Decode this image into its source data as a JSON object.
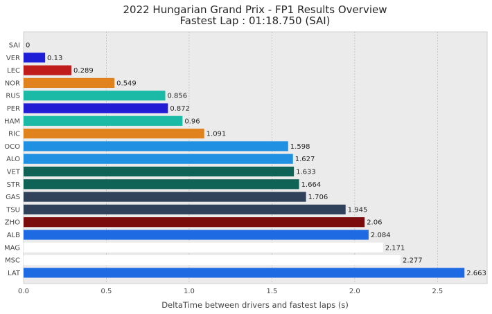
{
  "chart_data": {
    "type": "bar",
    "orientation": "horizontal",
    "title": "2022 Hungarian Grand Prix - FP1 Results Overview",
    "subtitle": "Fastest Lap : 01:18.750 (SAI)",
    "xlabel": "DeltaTime between drivers and fastest laps (s)",
    "ylabel": "",
    "xlim": [
      0,
      2.8
    ],
    "xticks": [
      0,
      0.5,
      1,
      1.5,
      2,
      2.5
    ],
    "xtick_labels": [
      "0.0",
      "0.5",
      "1.0",
      "1.5",
      "2.0",
      "2.5"
    ],
    "grid": true,
    "categories": [
      "SAI",
      "VER",
      "LEC",
      "NOR",
      "RUS",
      "PER",
      "HAM",
      "RIC",
      "OCO",
      "ALO",
      "VET",
      "STR",
      "GAS",
      "TSU",
      "ZHO",
      "ALB",
      "MAG",
      "MSC",
      "LAT"
    ],
    "values": [
      0,
      0.13,
      0.289,
      0.549,
      0.856,
      0.872,
      0.96,
      1.091,
      1.598,
      1.627,
      1.633,
      1.664,
      1.706,
      1.945,
      2.06,
      2.084,
      2.171,
      2.277,
      2.663
    ],
    "value_labels": [
      "0",
      "0.13",
      "0.289",
      "0.549",
      "0.856",
      "0.872",
      "0.96",
      "1.091",
      "1.598",
      "1.627",
      "1.633",
      "1.664",
      "1.706",
      "1.945",
      "2.06",
      "2.084",
      "2.171",
      "2.277",
      "2.663"
    ],
    "colors": [
      "#ED1C24",
      "#1E1ED7",
      "#C01C1C",
      "#E0831E",
      "#1ABAA6",
      "#221CD4",
      "#1ABAA6",
      "#E0831E",
      "#2090E2",
      "#2090E2",
      "#0F6356",
      "#0F6356",
      "#30415A",
      "#30415A",
      "#7B0C0C",
      "#1E6AE3",
      "#FFFFFF",
      "#FFFFFF",
      "#1E6AE3"
    ]
  },
  "style": {
    "plot_background": "#EBEBEB",
    "figure_background": "#FFFFFF",
    "grid_color": "#BDBDBD",
    "frame_color": "#CFCFCF"
  }
}
